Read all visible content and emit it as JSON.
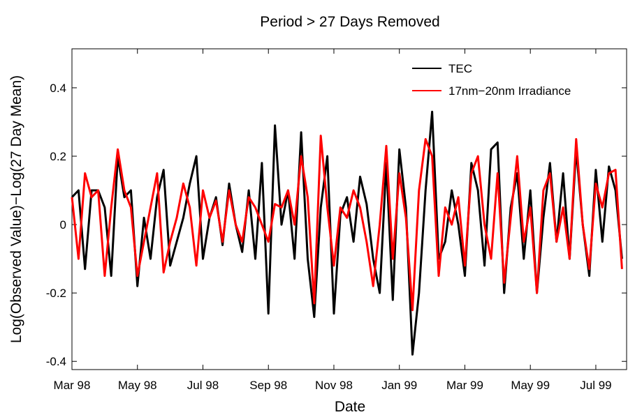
{
  "chart_data": {
    "type": "line",
    "title": "Period > 27 Days Removed",
    "x_label": "Date",
    "y_label": "Log(Observed Value)−Log(27 Day Mean)",
    "x": [
      0,
      0.2,
      0.4,
      0.6,
      0.8,
      1,
      1.2,
      1.4,
      1.6,
      1.8,
      2,
      2.2,
      2.4,
      2.6,
      2.8,
      3,
      3.2,
      3.4,
      3.6,
      3.8,
      4,
      4.2,
      4.4,
      4.6,
      4.8,
      5,
      5.2,
      5.4,
      5.6,
      5.8,
      6,
      6.2,
      6.4,
      6.6,
      6.8,
      7,
      7.2,
      7.4,
      7.6,
      7.8,
      8,
      8.2,
      8.4,
      8.6,
      8.8,
      9,
      9.2,
      9.4,
      9.6,
      9.8,
      10,
      10.2,
      10.4,
      10.6,
      10.8,
      11,
      11.2,
      11.4,
      11.6,
      11.8,
      12,
      12.2,
      12.4,
      12.6,
      12.8,
      13,
      13.2,
      13.4,
      13.6,
      13.8,
      14,
      14.2,
      14.4,
      14.6,
      14.8,
      15,
      15.2,
      15.4,
      15.6,
      15.8,
      16,
      16.2,
      16.4,
      16.6,
      16.8
    ],
    "series": [
      {
        "name": "TEC",
        "color": "#000000",
        "values": [
          0.08,
          0.1,
          -0.13,
          0.1,
          0.1,
          0.05,
          -0.15,
          0.2,
          0.08,
          0.1,
          -0.18,
          0.02,
          -0.1,
          0.08,
          0.16,
          -0.12,
          -0.05,
          0.02,
          0.12,
          0.2,
          -0.1,
          0.02,
          0.08,
          -0.06,
          0.12,
          0.0,
          -0.08,
          0.1,
          -0.1,
          0.18,
          -0.26,
          0.29,
          0.0,
          0.1,
          -0.1,
          0.27,
          -0.1,
          -0.27,
          0.05,
          0.2,
          -0.26,
          0.03,
          0.08,
          -0.05,
          0.14,
          0.06,
          -0.1,
          -0.2,
          0.18,
          -0.22,
          0.22,
          0.05,
          -0.38,
          -0.2,
          0.1,
          0.33,
          -0.1,
          -0.05,
          0.1,
          0.0,
          -0.15,
          0.18,
          0.1,
          -0.12,
          0.22,
          0.24,
          -0.2,
          0.05,
          0.15,
          -0.1,
          0.1,
          -0.2,
          0.02,
          0.18,
          -0.05,
          0.15,
          -0.1,
          0.22,
          0.0,
          -0.15,
          0.16,
          -0.05,
          0.17,
          0.1,
          -0.1
        ]
      },
      {
        "name": "17nm−20nm Irradiance",
        "color": "#ff0000",
        "values": [
          0.08,
          -0.1,
          0.15,
          0.08,
          0.1,
          -0.15,
          0.05,
          0.22,
          0.1,
          0.05,
          -0.15,
          -0.05,
          0.05,
          0.15,
          -0.14,
          -0.05,
          0.02,
          0.12,
          0.05,
          -0.12,
          0.1,
          0.02,
          0.07,
          -0.05,
          0.1,
          0.0,
          -0.05,
          0.08,
          0.05,
          0.0,
          -0.05,
          0.06,
          0.05,
          0.1,
          0.0,
          0.2,
          0.08,
          -0.23,
          0.26,
          0.05,
          -0.12,
          0.05,
          0.02,
          0.1,
          0.05,
          -0.05,
          -0.18,
          0.0,
          0.23,
          -0.1,
          0.15,
          0.02,
          -0.25,
          0.1,
          0.25,
          0.2,
          -0.15,
          0.05,
          0.0,
          0.08,
          -0.12,
          0.15,
          0.2,
          0.0,
          -0.1,
          0.15,
          -0.17,
          0.02,
          0.2,
          -0.05,
          0.05,
          -0.2,
          0.1,
          0.15,
          -0.05,
          0.05,
          -0.1,
          0.25,
          0.0,
          -0.13,
          0.12,
          0.05,
          0.15,
          0.16,
          -0.13
        ]
      }
    ],
    "xlim": [
      0,
      16.94
    ],
    "xticks": [
      {
        "value": 0,
        "label": "Mar 98"
      },
      {
        "value": 2,
        "label": "May 98"
      },
      {
        "value": 4,
        "label": "Jul 98"
      },
      {
        "value": 6,
        "label": "Sep 98"
      },
      {
        "value": 8,
        "label": "Nov 98"
      },
      {
        "value": 10,
        "label": "Jan 99"
      },
      {
        "value": 12,
        "label": "Mar 99"
      },
      {
        "value": 14,
        "label": "May 99"
      },
      {
        "value": 16,
        "label": "Jul 99"
      }
    ],
    "ylim": [
      -0.424,
      0.514
    ],
    "yticks": [
      -0.4,
      -0.2,
      0,
      0.2,
      0.4
    ],
    "legend": "upper right"
  }
}
